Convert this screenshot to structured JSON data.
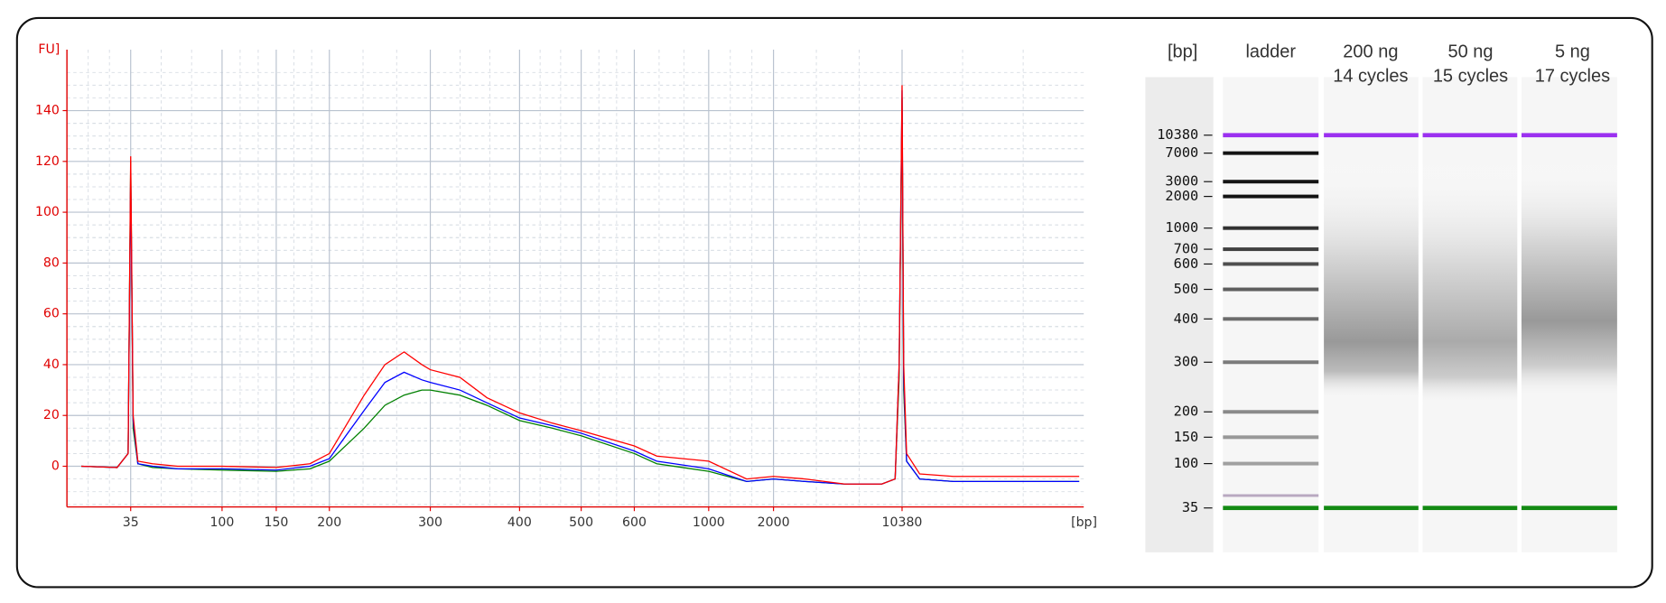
{
  "chart_data": [
    {
      "type": "line",
      "y_label": "FU]",
      "x_label": "[bp]",
      "x": [
        20,
        30,
        34,
        35,
        36,
        38,
        45,
        60,
        100,
        150,
        180,
        200,
        230,
        250,
        270,
        290,
        300,
        330,
        360,
        400,
        450,
        500,
        600,
        700,
        1000,
        1500,
        2000,
        3000,
        5000,
        8000,
        9500,
        10000,
        10380,
        10600,
        11000,
        13000,
        20000,
        40000,
        100000
      ],
      "series": [
        {
          "color": "#008000",
          "values": [
            0,
            -0.5,
            5,
            120,
            15,
            1,
            -0.5,
            -1,
            -1.5,
            -2,
            -1,
            2,
            15,
            24,
            28,
            30,
            30,
            28,
            24,
            18,
            15,
            12,
            5,
            1,
            -2,
            -6,
            -5,
            -6,
            -7,
            -7,
            -5,
            35,
            145,
            30,
            2,
            -5,
            -6,
            -6,
            -6
          ]
        },
        {
          "color": "#0000ff",
          "values": [
            0,
            -0.5,
            5,
            115,
            18,
            1,
            0,
            -1,
            -1,
            -1.5,
            0,
            3,
            22,
            33,
            37,
            34,
            33,
            30,
            25,
            19,
            16,
            13,
            6,
            2,
            -1,
            -6,
            -5,
            -6,
            -7,
            -7,
            -5,
            40,
            148,
            35,
            2,
            -5,
            -6,
            -6,
            -6
          ]
        },
        {
          "color": "#ff0000",
          "values": [
            0,
            -0.5,
            5,
            122,
            20,
            2,
            1,
            0,
            0,
            -0.5,
            1,
            5,
            28,
            40,
            45,
            40,
            38,
            35,
            27,
            21,
            17,
            14,
            8,
            4,
            2,
            -5,
            -4,
            -5,
            -7,
            -7,
            -5,
            40,
            150,
            40,
            5,
            -3,
            -4,
            -4,
            -4
          ]
        }
      ],
      "xlim": [
        17,
        106000
      ],
      "xticks": [
        35,
        100,
        150,
        200,
        300,
        400,
        500,
        600,
        1000,
        2000,
        10380
      ],
      "ylim": [
        -16,
        164
      ],
      "yticks": [
        0,
        20,
        40,
        60,
        80,
        100,
        120,
        140
      ],
      "grid": true
    },
    {
      "type": "gel",
      "y_label": "[bp]",
      "lanes": [
        [
          "ladder"
        ],
        [
          "200 ng",
          "14 cycles"
        ],
        [
          "50 ng",
          "15 cycles"
        ],
        [
          "5 ng",
          "17 cycles"
        ]
      ],
      "yticks": [
        10380,
        7000,
        3000,
        2000,
        1000,
        700,
        600,
        500,
        400,
        300,
        200,
        150,
        100,
        35
      ]
    }
  ]
}
